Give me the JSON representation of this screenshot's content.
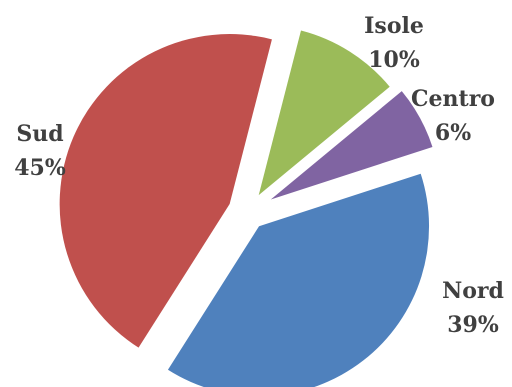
{
  "chart_data": {
    "type": "pie",
    "exploded": true,
    "legend": "none",
    "slices": [
      {
        "category": "Nord",
        "value": 39,
        "label": "39%",
        "color": "#4F81BD"
      },
      {
        "category": "Sud",
        "value": 45,
        "label": "45%",
        "color": "#C0504D"
      },
      {
        "category": "Isole",
        "value": 10,
        "label": "10%",
        "color": "#9BBB59"
      },
      {
        "category": "Centro",
        "value": 6,
        "label": "6%",
        "color": "#8064A2"
      }
    ]
  }
}
